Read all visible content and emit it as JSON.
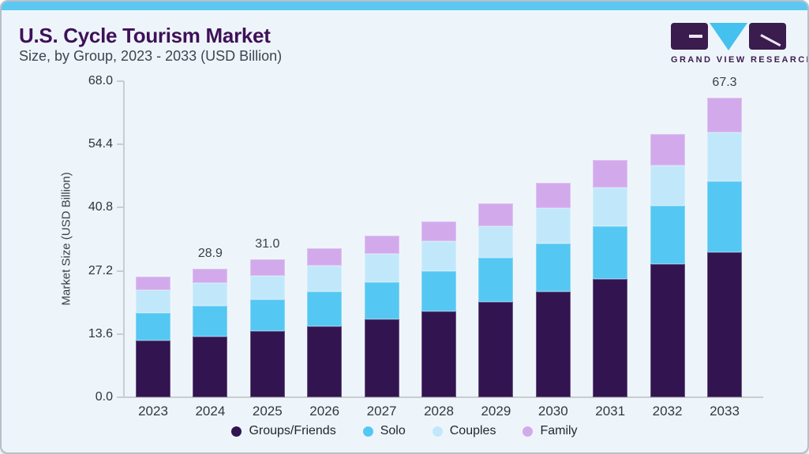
{
  "header": {
    "title": "U.S. Cycle Tourism Market",
    "subtitle": "Size, by Group, 2023 - 2033 (USD Billion)"
  },
  "logo": {
    "text": "GRAND VIEW RESEARCH",
    "purple": "#3a1c4e",
    "blue": "#45c1ef"
  },
  "chart_data": {
    "type": "bar",
    "stacked": true,
    "title": "U.S. Cycle Tourism Market Size, by Group, 2023 - 2033 (USD Billion)",
    "ylabel": "Market Size (USD Billion)",
    "ylim": [
      0,
      68
    ],
    "ytick_labels": [
      "68.0",
      "54.4",
      "40.8",
      "27.2",
      "13.6",
      "0.0"
    ],
    "grid": false,
    "legend_position": "bottom",
    "categories": [
      "2023",
      "2024",
      "2025",
      "2026",
      "2027",
      "2028",
      "2029",
      "2030",
      "2031",
      "2032",
      "2033"
    ],
    "series": [
      {
        "name": "Groups/Friends",
        "color": "#321451",
        "values": [
          12.7,
          13.6,
          14.9,
          16.0,
          17.6,
          19.3,
          21.5,
          23.8,
          26.5,
          29.9,
          32.6
        ]
      },
      {
        "name": "Solo",
        "color": "#55c7f3",
        "values": [
          6.2,
          6.9,
          7.1,
          7.8,
          8.3,
          9.1,
          9.8,
          10.7,
          11.9,
          13.1,
          15.9
        ]
      },
      {
        "name": "Couples",
        "color": "#c1e8fa",
        "values": [
          5.1,
          5.2,
          5.3,
          5.7,
          6.3,
          6.6,
          7.1,
          8.0,
          8.7,
          9.1,
          11.0
        ]
      },
      {
        "name": "Family",
        "color": "#d2aaec",
        "values": [
          3.0,
          3.2,
          3.7,
          4.0,
          4.1,
          4.5,
          5.2,
          5.7,
          6.1,
          7.1,
          7.8
        ]
      }
    ],
    "totals": [
      27.0,
      28.9,
      31.0,
      33.5,
      36.3,
      39.5,
      43.6,
      48.2,
      53.2,
      59.2,
      67.3
    ],
    "value_labels": [
      "",
      "28.9",
      "31.0",
      "",
      "",
      "",
      "",
      "",
      "",
      "",
      "67.3"
    ]
  }
}
